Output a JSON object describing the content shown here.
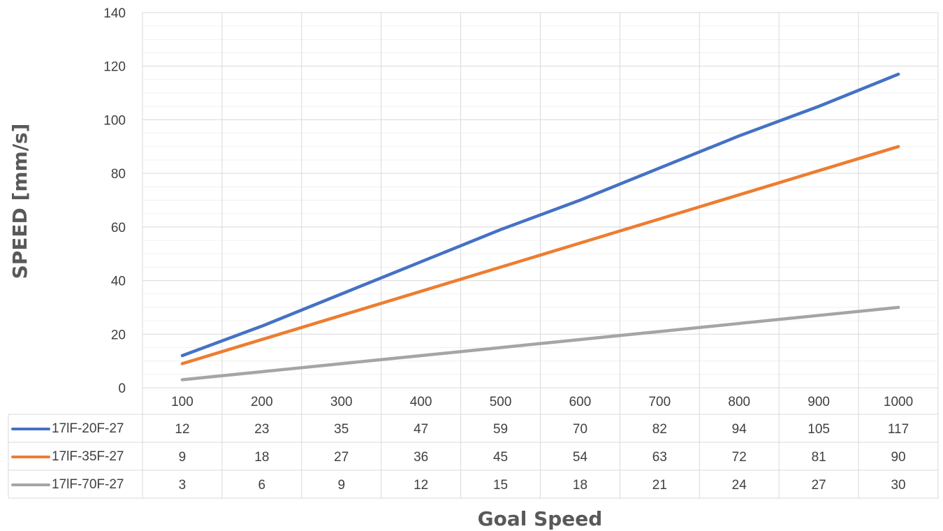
{
  "chart_data": {
    "type": "line",
    "title": "",
    "xlabel": "Goal Speed",
    "ylabel": "SPEED [mm/s]",
    "ylim": [
      0,
      140
    ],
    "yticks": [
      0,
      20,
      40,
      60,
      80,
      100,
      120,
      140
    ],
    "minor_grid_step": 5,
    "grid": true,
    "legend_placement": "data-table",
    "categories": [
      "100",
      "200",
      "300",
      "400",
      "500",
      "600",
      "700",
      "800",
      "900",
      "1000"
    ],
    "series": [
      {
        "name": "17lF-20F-27",
        "color": "#4472c4",
        "values": [
          12,
          23,
          35,
          47,
          59,
          70,
          82,
          94,
          105,
          117
        ]
      },
      {
        "name": "17lF-35F-27",
        "color": "#ed7d31",
        "values": [
          9,
          18,
          27,
          36,
          45,
          54,
          63,
          72,
          81,
          90
        ]
      },
      {
        "name": "17lF-70F-27",
        "color": "#a5a5a5",
        "values": [
          3,
          6,
          9,
          12,
          15,
          18,
          21,
          24,
          27,
          30
        ]
      }
    ]
  }
}
